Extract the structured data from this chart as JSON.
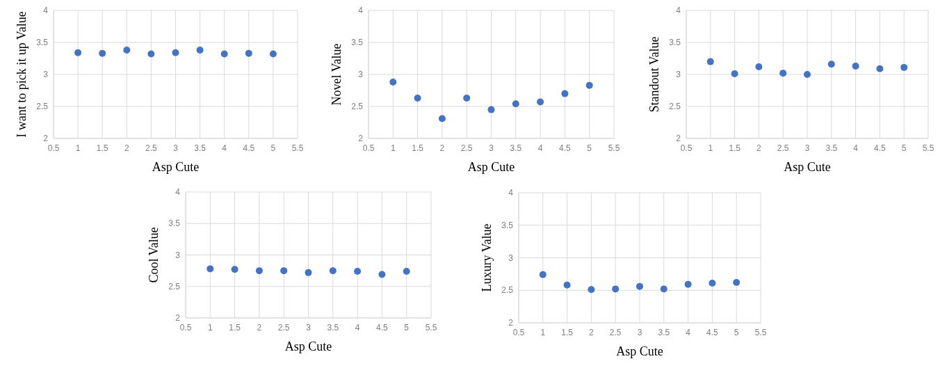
{
  "chart_data": [
    {
      "type": "scatter",
      "xlabel": "Asp Cute",
      "ylabel": "I want to pick it up Value",
      "x": [
        1,
        1.5,
        2,
        2.5,
        3,
        3.5,
        4,
        4.5,
        5
      ],
      "series": [
        {
          "color": "#4472c4",
          "values": [
            3.34,
            3.33,
            3.38,
            3.32,
            3.34,
            3.38,
            3.32,
            3.33,
            3.32
          ]
        }
      ],
      "xlim": [
        0.5,
        5.5
      ],
      "xticks": [
        0.5,
        1,
        1.5,
        2,
        2.5,
        3,
        3.5,
        4,
        4.5,
        5,
        5.5
      ],
      "ylim": [
        2,
        4
      ],
      "yticks": [
        2,
        2.5,
        3,
        3.5,
        4
      ],
      "grid": true,
      "marker": "circle"
    },
    {
      "type": "scatter",
      "xlabel": "Asp Cute",
      "ylabel": "Novel Value",
      "x": [
        1,
        1.5,
        2,
        2.5,
        3,
        3.5,
        4,
        4.5,
        5
      ],
      "series": [
        {
          "color": "#4472c4",
          "values": [
            2.88,
            2.63,
            2.31,
            2.63,
            2.45,
            2.54,
            2.57,
            2.7,
            2.83
          ]
        }
      ],
      "xlim": [
        0.5,
        5.5
      ],
      "xticks": [
        0.5,
        1,
        1.5,
        2,
        2.5,
        3,
        3.5,
        4,
        4.5,
        5,
        5.5
      ],
      "ylim": [
        2,
        4
      ],
      "yticks": [
        2,
        2.5,
        3,
        3.5,
        4
      ],
      "grid": true,
      "marker": "circle"
    },
    {
      "type": "scatter",
      "xlabel": "Asp Cute",
      "ylabel": "Standout Value",
      "x": [
        1,
        1.5,
        2,
        2.5,
        3,
        3.5,
        4,
        4.5,
        5
      ],
      "series": [
        {
          "color": "#4472c4",
          "values": [
            3.2,
            3.01,
            3.12,
            3.02,
            3.0,
            3.16,
            3.13,
            3.09,
            3.11
          ]
        }
      ],
      "xlim": [
        0.5,
        5.5
      ],
      "xticks": [
        0.5,
        1,
        1.5,
        2,
        2.5,
        3,
        3.5,
        4,
        4.5,
        5,
        5.5
      ],
      "ylim": [
        2,
        4
      ],
      "yticks": [
        2,
        2.5,
        3,
        3.5,
        4
      ],
      "grid": true,
      "marker": "circle"
    },
    {
      "type": "scatter",
      "xlabel": "Asp Cute",
      "ylabel": "Cool Value",
      "x": [
        1,
        1.5,
        2,
        2.5,
        3,
        3.5,
        4,
        4.5,
        5
      ],
      "series": [
        {
          "color": "#4472c4",
          "values": [
            2.78,
            2.77,
            2.75,
            2.75,
            2.72,
            2.75,
            2.74,
            2.69,
            2.74
          ]
        }
      ],
      "xlim": [
        0.5,
        5.5
      ],
      "xticks": [
        0.5,
        1,
        1.5,
        2,
        2.5,
        3,
        3.5,
        4,
        4.5,
        5,
        5.5
      ],
      "ylim": [
        2,
        4
      ],
      "yticks": [
        2,
        2.5,
        3,
        3.5,
        4
      ],
      "grid": true,
      "marker": "circle"
    },
    {
      "type": "scatter",
      "xlabel": "Asp Cute",
      "ylabel": "Luxury Value",
      "x": [
        1,
        1.5,
        2,
        2.5,
        3,
        3.5,
        4,
        4.5,
        5
      ],
      "series": [
        {
          "color": "#4472c4",
          "values": [
            2.74,
            2.58,
            2.51,
            2.52,
            2.56,
            2.52,
            2.59,
            2.61,
            2.62
          ]
        }
      ],
      "xlim": [
        0.5,
        5.5
      ],
      "xticks": [
        0.5,
        1,
        1.5,
        2,
        2.5,
        3,
        3.5,
        4,
        4.5,
        5,
        5.5
      ],
      "ylim": [
        2,
        4
      ],
      "yticks": [
        2,
        2.5,
        3,
        3.5,
        4
      ],
      "grid": true,
      "marker": "circle"
    }
  ]
}
